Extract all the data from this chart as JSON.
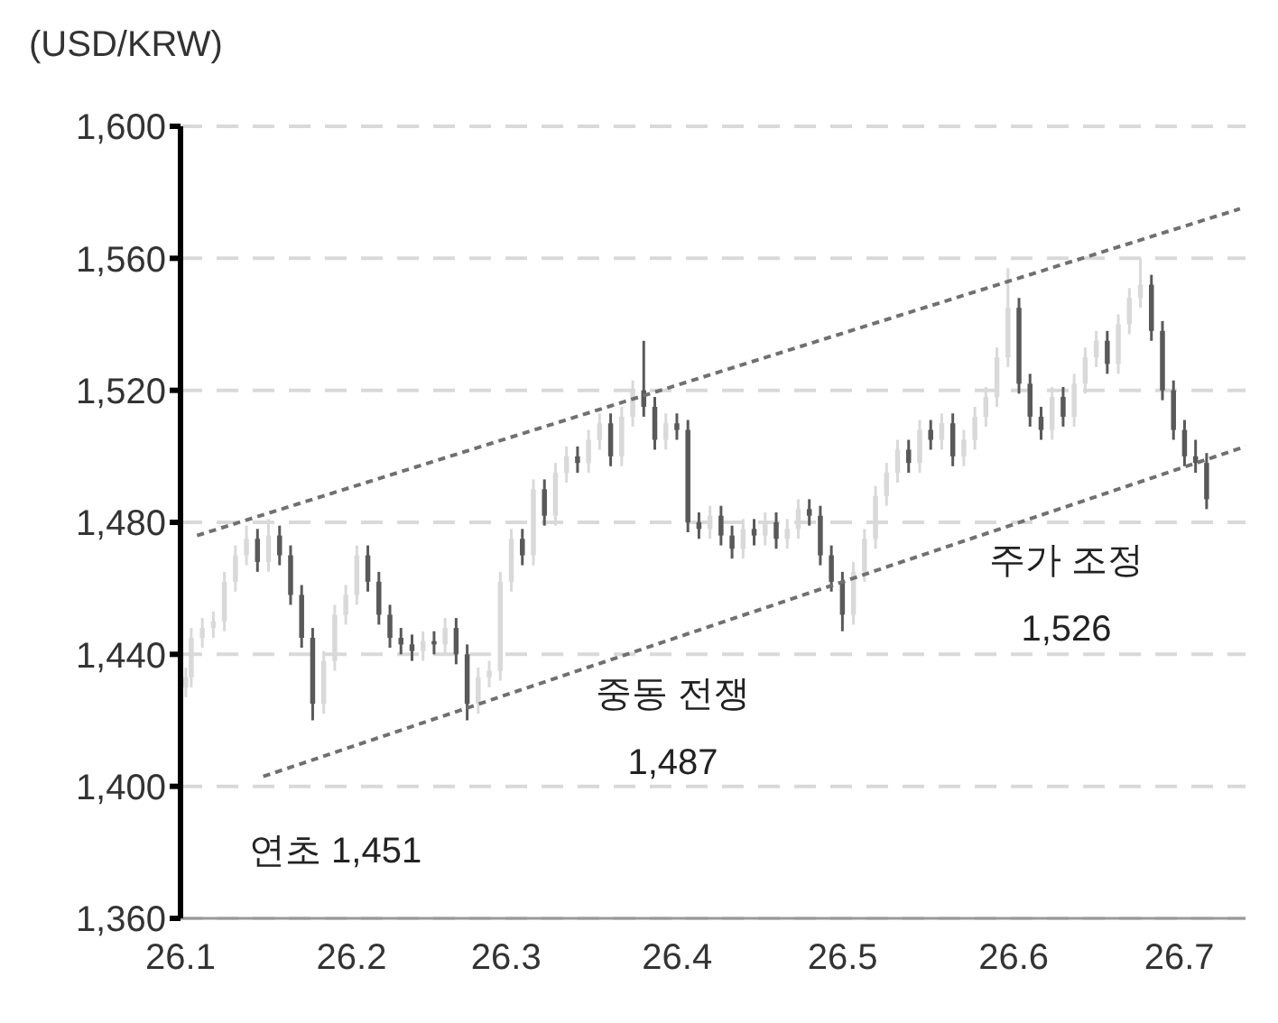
{
  "chart_data": {
    "type": "candlestick",
    "ylabel": "(USD/KRW)",
    "x": [
      "--01-02",
      "--01-03",
      "--01-05",
      "--01-07",
      "--01-09",
      "--01-11",
      "--01-13",
      "--01-15",
      "--01-17",
      "--01-19",
      "--01-21",
      "--01-23",
      "--01-25",
      "--01-27",
      "--01-29",
      "--01-31",
      "--02-02",
      "--02-04",
      "--02-06",
      "--02-08",
      "--02-10",
      "--02-12",
      "--02-14",
      "--02-16",
      "--02-18",
      "--02-20",
      "--02-22",
      "--02-24",
      "--02-26",
      "--02-28",
      "--03-02",
      "--03-04",
      "--03-06",
      "--03-08",
      "--03-10",
      "--03-12",
      "--03-14",
      "--03-16",
      "--03-18",
      "--03-20",
      "--03-22",
      "--03-24",
      "--03-26",
      "--03-28",
      "--03-30",
      "--04-01",
      "--04-03",
      "--04-05",
      "--04-07",
      "--04-09",
      "--04-11",
      "--04-13",
      "--04-15",
      "--04-17",
      "--04-19",
      "--04-21",
      "--04-23",
      "--04-25",
      "--04-27",
      "--04-29",
      "--05-01",
      "--05-03",
      "--05-05",
      "--05-07",
      "--05-09",
      "--05-11",
      "--05-13",
      "--05-15",
      "--05-17",
      "--05-19",
      "--05-21",
      "--05-23",
      "--05-25",
      "--05-27",
      "--05-29",
      "--05-31",
      "--06-02",
      "--06-04",
      "--06-06",
      "--06-08",
      "--06-10",
      "--06-12",
      "--06-14",
      "--06-16",
      "--06-18",
      "--06-20",
      "--06-22",
      "--06-24",
      "--06-26",
      "--06-28",
      "--06-30",
      "--07-02",
      "--07-04",
      "--07-06"
    ],
    "ohlc": [
      [
        1430,
        1436,
        1427,
        1433
      ],
      [
        1433,
        1448,
        1430,
        1445
      ],
      [
        1445,
        1451,
        1442,
        1448
      ],
      [
        1448,
        1453,
        1445,
        1450
      ],
      [
        1450,
        1465,
        1447,
        1462
      ],
      [
        1462,
        1473,
        1459,
        1470
      ],
      [
        1470,
        1479,
        1467,
        1475
      ],
      [
        1475,
        1478,
        1465,
        1468
      ],
      [
        1468,
        1481,
        1465,
        1476
      ],
      [
        1476,
        1479,
        1467,
        1470
      ],
      [
        1470,
        1473,
        1455,
        1458
      ],
      [
        1458,
        1461,
        1442,
        1445
      ],
      [
        1445,
        1448,
        1420,
        1425
      ],
      [
        1425,
        1441,
        1422,
        1438
      ],
      [
        1438,
        1455,
        1435,
        1452
      ],
      [
        1452,
        1461,
        1449,
        1458
      ],
      [
        1458,
        1473,
        1455,
        1470
      ],
      [
        1470,
        1473,
        1459,
        1462
      ],
      [
        1462,
        1465,
        1449,
        1452
      ],
      [
        1452,
        1455,
        1442,
        1445
      ],
      [
        1445,
        1448,
        1440,
        1443
      ],
      [
        1443,
        1446,
        1438,
        1441
      ],
      [
        1441,
        1447,
        1438,
        1444
      ],
      [
        1444,
        1447,
        1440,
        1443
      ],
      [
        1443,
        1451,
        1440,
        1448
      ],
      [
        1448,
        1451,
        1437,
        1440
      ],
      [
        1440,
        1443,
        1420,
        1425
      ],
      [
        1425,
        1436,
        1422,
        1433
      ],
      [
        1433,
        1438,
        1430,
        1435
      ],
      [
        1435,
        1465,
        1432,
        1462
      ],
      [
        1462,
        1478,
        1459,
        1475
      ],
      [
        1475,
        1478,
        1467,
        1470
      ],
      [
        1470,
        1493,
        1467,
        1490
      ],
      [
        1490,
        1493,
        1479,
        1482
      ],
      [
        1482,
        1498,
        1479,
        1495
      ],
      [
        1495,
        1503,
        1492,
        1500
      ],
      [
        1500,
        1503,
        1495,
        1498
      ],
      [
        1498,
        1508,
        1495,
        1505
      ],
      [
        1505,
        1513,
        1502,
        1510
      ],
      [
        1510,
        1513,
        1497,
        1500
      ],
      [
        1500,
        1515,
        1497,
        1512
      ],
      [
        1512,
        1523,
        1509,
        1520
      ],
      [
        1520,
        1535,
        1512,
        1515
      ],
      [
        1515,
        1518,
        1502,
        1505
      ],
      [
        1505,
        1513,
        1502,
        1510
      ],
      [
        1510,
        1513,
        1505,
        1508
      ],
      [
        1508,
        1511,
        1477,
        1480
      ],
      [
        1480,
        1483,
        1475,
        1478
      ],
      [
        1478,
        1485,
        1475,
        1482
      ],
      [
        1482,
        1485,
        1473,
        1476
      ],
      [
        1476,
        1479,
        1469,
        1472
      ],
      [
        1472,
        1481,
        1469,
        1478
      ],
      [
        1478,
        1481,
        1473,
        1476
      ],
      [
        1476,
        1483,
        1473,
        1480
      ],
      [
        1480,
        1483,
        1472,
        1475
      ],
      [
        1475,
        1481,
        1472,
        1478
      ],
      [
        1478,
        1487,
        1475,
        1484
      ],
      [
        1484,
        1487,
        1479,
        1482
      ],
      [
        1482,
        1485,
        1467,
        1470
      ],
      [
        1470,
        1473,
        1459,
        1462
      ],
      [
        1462,
        1465,
        1447,
        1452
      ],
      [
        1452,
        1468,
        1449,
        1465
      ],
      [
        1465,
        1478,
        1462,
        1475
      ],
      [
        1475,
        1491,
        1472,
        1488
      ],
      [
        1488,
        1498,
        1485,
        1495
      ],
      [
        1495,
        1505,
        1492,
        1502
      ],
      [
        1502,
        1505,
        1495,
        1498
      ],
      [
        1498,
        1511,
        1495,
        1508
      ],
      [
        1508,
        1511,
        1502,
        1505
      ],
      [
        1505,
        1513,
        1502,
        1510
      ],
      [
        1510,
        1513,
        1497,
        1500
      ],
      [
        1500,
        1508,
        1497,
        1505
      ],
      [
        1505,
        1515,
        1502,
        1512
      ],
      [
        1512,
        1521,
        1509,
        1518
      ],
      [
        1518,
        1533,
        1515,
        1530
      ],
      [
        1530,
        1557,
        1527,
        1545
      ],
      [
        1545,
        1548,
        1519,
        1522
      ],
      [
        1522,
        1525,
        1509,
        1512
      ],
      [
        1512,
        1515,
        1505,
        1508
      ],
      [
        1508,
        1521,
        1505,
        1518
      ],
      [
        1518,
        1521,
        1509,
        1512
      ],
      [
        1512,
        1525,
        1509,
        1522
      ],
      [
        1522,
        1533,
        1519,
        1530
      ],
      [
        1530,
        1538,
        1527,
        1535
      ],
      [
        1535,
        1538,
        1525,
        1528
      ],
      [
        1528,
        1543,
        1525,
        1540
      ],
      [
        1540,
        1551,
        1537,
        1548
      ],
      [
        1548,
        1560,
        1545,
        1552
      ],
      [
        1552,
        1555,
        1535,
        1538
      ],
      [
        1538,
        1541,
        1517,
        1520
      ],
      [
        1520,
        1523,
        1505,
        1508
      ],
      [
        1508,
        1511,
        1497,
        1500
      ],
      [
        1500,
        1505,
        1495,
        1498
      ],
      [
        1498,
        1501,
        1484,
        1487
      ]
    ],
    "colors": [
      "#d9d9d9",
      "#d9d9d9",
      "#d9d9d9",
      "#d9d9d9",
      "#d9d9d9",
      "#d9d9d9",
      "#d9d9d9",
      "#595959",
      "#d9d9d9",
      "#595959",
      "#595959",
      "#595959",
      "#595959",
      "#d9d9d9",
      "#d9d9d9",
      "#d9d9d9",
      "#d9d9d9",
      "#595959",
      "#595959",
      "#595959",
      "#595959",
      "#595959",
      "#d9d9d9",
      "#595959",
      "#d9d9d9",
      "#595959",
      "#595959",
      "#d9d9d9",
      "#d9d9d9",
      "#d9d9d9",
      "#d9d9d9",
      "#595959",
      "#d9d9d9",
      "#595959",
      "#d9d9d9",
      "#d9d9d9",
      "#595959",
      "#d9d9d9",
      "#d9d9d9",
      "#595959",
      "#d9d9d9",
      "#d9d9d9",
      "#595959",
      "#595959",
      "#d9d9d9",
      "#595959",
      "#595959",
      "#595959",
      "#d9d9d9",
      "#595959",
      "#595959",
      "#d9d9d9",
      "#595959",
      "#d9d9d9",
      "#595959",
      "#d9d9d9",
      "#d9d9d9",
      "#595959",
      "#595959",
      "#595959",
      "#595959",
      "#d9d9d9",
      "#d9d9d9",
      "#d9d9d9",
      "#d9d9d9",
      "#d9d9d9",
      "#595959",
      "#d9d9d9",
      "#595959",
      "#d9d9d9",
      "#595959",
      "#d9d9d9",
      "#d9d9d9",
      "#d9d9d9",
      "#d9d9d9",
      "#d9d9d9",
      "#595959",
      "#595959",
      "#595959",
      "#d9d9d9",
      "#595959",
      "#d9d9d9",
      "#d9d9d9",
      "#d9d9d9",
      "#595959",
      "#d9d9d9",
      "#d9d9d9",
      "#d9d9d9",
      "#595959",
      "#595959",
      "#595959",
      "#595959",
      "#595959",
      "#595959"
    ],
    "series": [
      {
        "type": "line",
        "x": [
          "--01-04",
          "--07-12"
        ],
        "values": [
          1476,
          1575
        ],
        "color": "#707070",
        "line_style": "dashed"
      },
      {
        "type": "line",
        "x": [
          "--01-16",
          "--07-13"
        ],
        "values": [
          1403,
          1503
        ],
        "color": "#707070",
        "line_style": "dashed"
      }
    ],
    "xlim": [
      "--01-01",
      "--07-13"
    ],
    "xticks": [
      {
        "value": "--01-01",
        "label": "26.1"
      },
      {
        "value": "--02-01",
        "label": "26.2"
      },
      {
        "value": "--03-01",
        "label": "26.3"
      },
      {
        "value": "--04-01",
        "label": "26.4"
      },
      {
        "value": "--05-01",
        "label": "26.5"
      },
      {
        "value": "--06-01",
        "label": "26.6"
      },
      {
        "value": "--07-01",
        "label": "26.7"
      }
    ],
    "ylim": [
      1360,
      1600
    ],
    "yticks": [
      {
        "value": 1360,
        "label": "1,360"
      },
      {
        "value": 1400,
        "label": "1,400"
      },
      {
        "value": 1440,
        "label": "1,440"
      },
      {
        "value": 1480,
        "label": "1,480"
      },
      {
        "value": 1520,
        "label": "1,520"
      },
      {
        "value": 1560,
        "label": "1,560"
      },
      {
        "value": 1600,
        "label": "1,600"
      }
    ],
    "grid": "y",
    "annotations": [
      "연초 1,451",
      "중동 전쟁\n1,487",
      "주가 조정\n1,526"
    ]
  }
}
